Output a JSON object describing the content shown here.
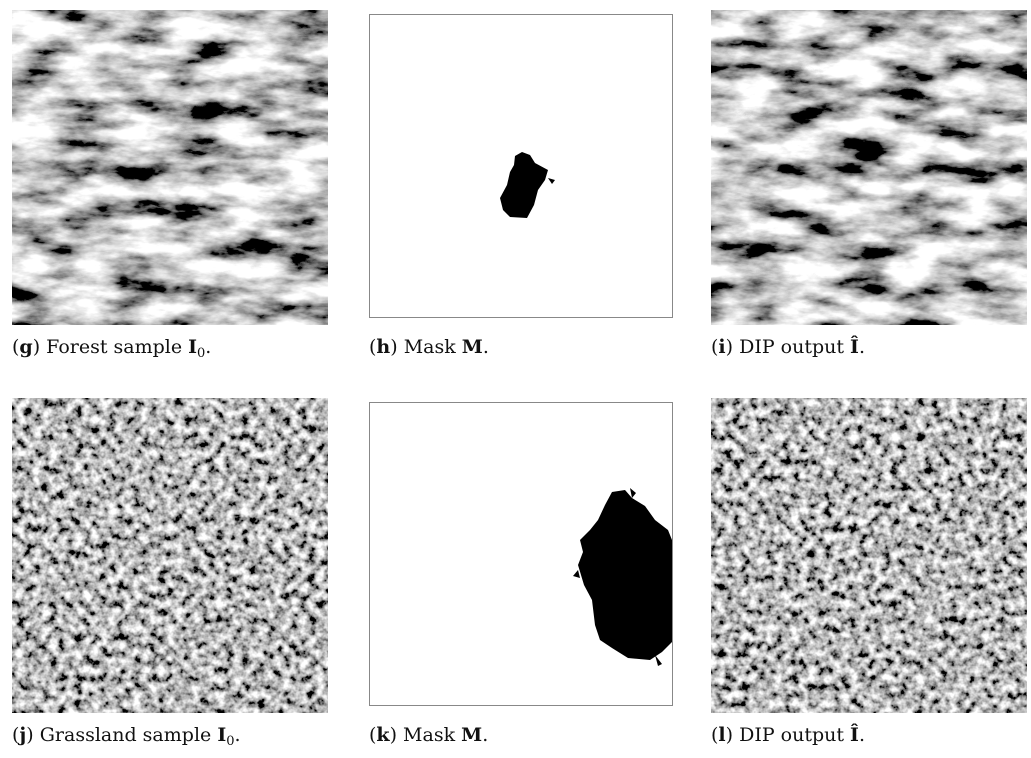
{
  "panels": [
    {
      "caption": [
        "(",
        "g",
        ") Forest sample ",
        "I",
        "0",
        "."
      ]
    },
    {
      "caption": [
        "(",
        "h",
        ") Mask ",
        "M",
        "."
      ]
    },
    {
      "caption": [
        "(",
        "i",
        ") DIP output ",
        "Î",
        "."
      ]
    },
    {
      "caption": [
        "(",
        "j",
        ") Grassland sample ",
        "I",
        "0",
        "."
      ]
    },
    {
      "caption": [
        "(",
        "k",
        ") Mask ",
        "M",
        "."
      ]
    },
    {
      "caption": [
        "(",
        "l",
        ") DIP output ",
        "Î",
        "."
      ]
    }
  ]
}
